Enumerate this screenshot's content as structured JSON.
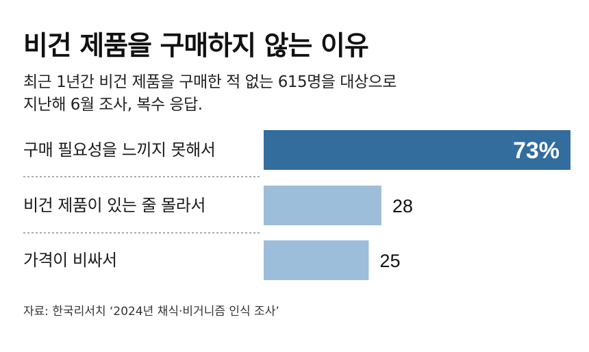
{
  "title": "비건 제품을 구매하지 않는 이유",
  "subtitle_lines": [
    "최근 1년간 비건 제품을 구매한 적 없는 615명을 대상으로",
    "지난해 6월 조사, 복수 응답."
  ],
  "source": "자료: 한국리서치 ‘2024년 채식·비거니즘 인식 조사’",
  "colors": {
    "highlight": "#336d9e",
    "normal": "#9dbedb",
    "divider": "#777777"
  },
  "chart_data": {
    "type": "bar",
    "orientation": "horizontal",
    "categories": [
      "구매 필요성을 느끼지 못해서",
      "비건 제품이 있는 줄 몰라서",
      "가격이 비싸서"
    ],
    "values": [
      73,
      28,
      25
    ],
    "value_labels": [
      "73%",
      "28",
      "25"
    ],
    "unit": "%",
    "highlight_index": 0,
    "xlim": [
      0,
      73
    ]
  }
}
